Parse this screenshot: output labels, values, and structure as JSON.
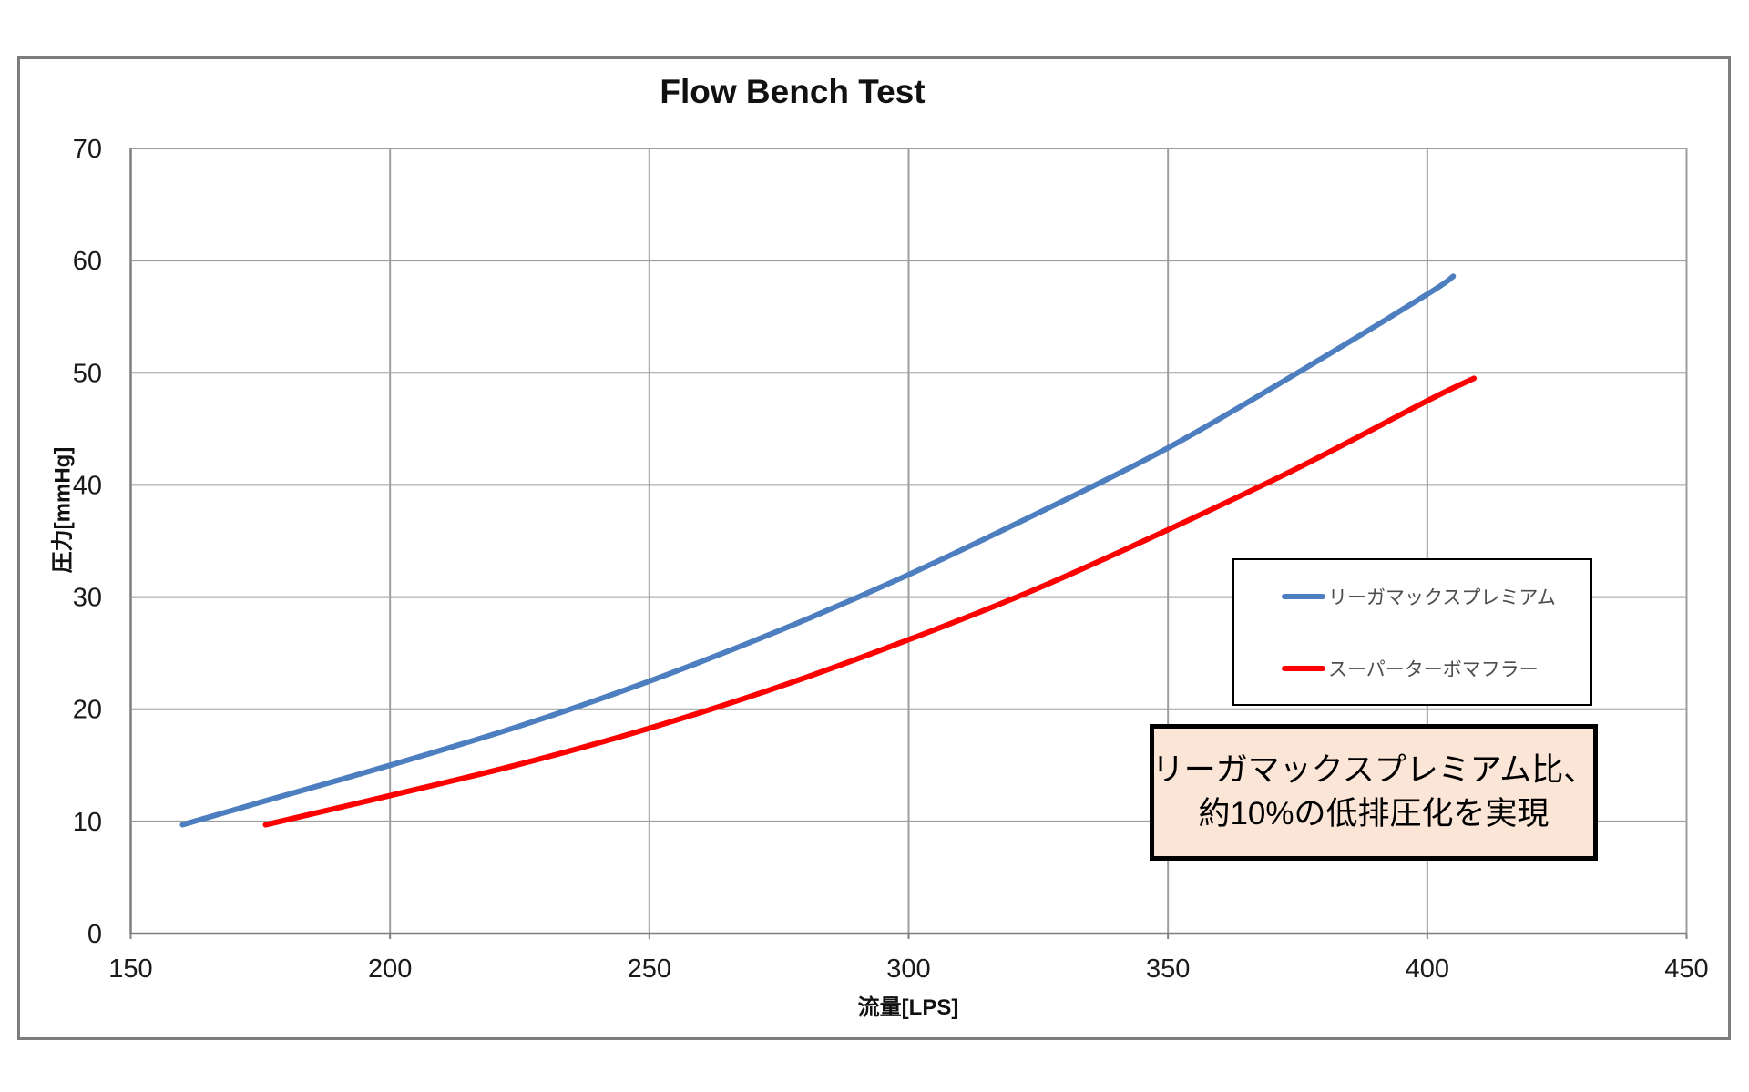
{
  "chart": {
    "title": "Flow Bench Test",
    "x_axis_title": "流量[LPS]",
    "y_axis_title": "圧力[mmHg]"
  },
  "legend": {
    "items": [
      {
        "label": "リーガマックスプレミアム",
        "color": "#4d7ebf"
      },
      {
        "label": "スーパーターボマフラー",
        "color": "#ff0000"
      }
    ]
  },
  "annotation": {
    "line1": "リーガマックスプレミアム比、",
    "line2": "約10%の低排圧化を実現",
    "background": "#FBE5D6",
    "border_color": "#000000"
  },
  "colors": {
    "gridline": "#9e9e9e",
    "axis": "#7f7f7f",
    "frame": "#7d7d7d",
    "tick_label": "#1a1a1a",
    "series_blue": "#4d7ebf",
    "series_red": "#ff0000"
  },
  "chart_data": {
    "type": "line",
    "title": "Flow Bench Test",
    "xlabel": "流量[LPS]",
    "ylabel": "圧力[mmHg]",
    "xlim": [
      150,
      450
    ],
    "ylim": [
      0,
      70
    ],
    "xticks": [
      150,
      200,
      250,
      300,
      350,
      400,
      450
    ],
    "yticks": [
      0,
      10,
      20,
      30,
      40,
      50,
      60,
      70
    ],
    "grid": true,
    "legend_position": "inside right",
    "series": [
      {
        "name": "リーガマックスプレミアム",
        "color": "#4d7ebf",
        "points": [
          [
            160,
            9.7
          ],
          [
            175,
            11.7
          ],
          [
            200,
            15.0
          ],
          [
            225,
            18.5
          ],
          [
            250,
            22.5
          ],
          [
            275,
            27.0
          ],
          [
            300,
            32.0
          ],
          [
            325,
            37.5
          ],
          [
            350,
            43.3
          ],
          [
            375,
            50.0
          ],
          [
            400,
            57.0
          ],
          [
            405,
            58.6
          ]
        ]
      },
      {
        "name": "スーパーターボマフラー",
        "color": "#ff0000",
        "points": [
          [
            176,
            9.7
          ],
          [
            200,
            12.3
          ],
          [
            225,
            15.1
          ],
          [
            250,
            18.3
          ],
          [
            275,
            22.0
          ],
          [
            300,
            26.2
          ],
          [
            325,
            30.8
          ],
          [
            350,
            36.0
          ],
          [
            375,
            41.5
          ],
          [
            400,
            47.5
          ],
          [
            409,
            49.5
          ]
        ]
      }
    ],
    "annotation_text": "リーガマックスプレミアム比、約10%の低排圧化を実現"
  }
}
